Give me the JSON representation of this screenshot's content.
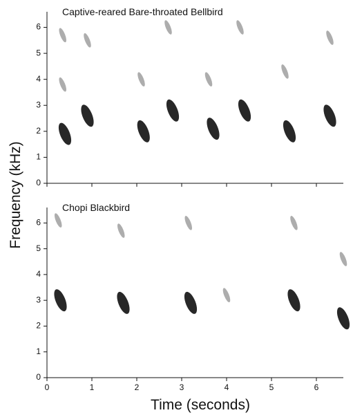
{
  "chart_data": [
    {
      "type": "spectrogram",
      "title": "Captive-reared Bare-throated Bellbird",
      "y_label": "Frequency (kHz)",
      "xlim": [
        0,
        6.6
      ],
      "ylim": [
        0,
        6.6
      ],
      "xticks": [
        0,
        1,
        2,
        3,
        4,
        5,
        6
      ],
      "yticks": [
        0,
        1,
        2,
        3,
        4,
        5,
        6
      ],
      "series": [
        {
          "color": "#111111",
          "x": [
            0.4,
            0.9,
            2.15,
            2.8,
            3.7,
            4.4,
            5.4,
            6.3
          ],
          "values": [
            1.9,
            2.6,
            2.0,
            2.8,
            2.1,
            2.8,
            2.0,
            2.6
          ]
        },
        {
          "color": "#777777",
          "x": [
            0.35,
            0.35,
            0.9,
            2.1,
            2.7,
            3.6,
            4.3,
            5.3,
            6.3
          ],
          "values": [
            3.8,
            5.7,
            5.5,
            4.0,
            6.0,
            4.0,
            6.0,
            4.3,
            5.6
          ]
        }
      ]
    },
    {
      "type": "spectrogram",
      "title": "Chopi Blackbird",
      "x_label": "Time (seconds)",
      "xlim": [
        0,
        6.6
      ],
      "ylim": [
        0,
        6.6
      ],
      "xticks": [
        0,
        1,
        2,
        3,
        4,
        5,
        6
      ],
      "yticks": [
        0,
        1,
        2,
        3,
        4,
        5,
        6
      ],
      "series": [
        {
          "color": "#111111",
          "x": [
            0.3,
            1.7,
            3.2,
            5.5,
            6.6
          ],
          "values": [
            3.0,
            2.9,
            2.9,
            3.0,
            2.3
          ]
        },
        {
          "color": "#777777",
          "x": [
            0.25,
            1.65,
            3.15,
            4.0,
            5.5,
            6.6
          ],
          "values": [
            6.1,
            5.7,
            6.0,
            3.2,
            6.0,
            4.6
          ]
        }
      ]
    }
  ]
}
